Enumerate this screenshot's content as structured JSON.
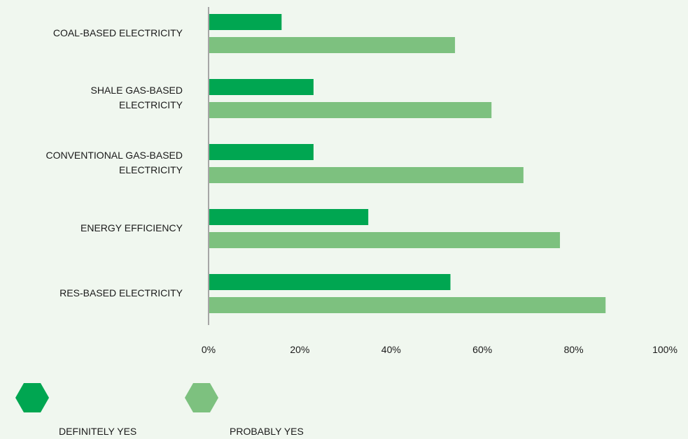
{
  "chart_data": {
    "type": "bar",
    "orientation": "horizontal",
    "categories": [
      "COAL-BASED ELECTRICITY",
      "SHALE GAS-BASED\nELECTRICITY",
      "CONVENTIONAL GAS-BASED\nELECTRICITY",
      "ENERGY EFFICIENCY",
      "RES-BASED ELECTRICITY"
    ],
    "series": [
      {
        "name": "DEFINITELY YES",
        "color": "#00a651",
        "values": [
          16,
          23,
          23,
          35,
          53
        ]
      },
      {
        "name": "PROBABLY YES",
        "color": "#7dc17f",
        "values": [
          54,
          62,
          69,
          77,
          87
        ]
      }
    ],
    "xlim": [
      0,
      100
    ],
    "xticks": [
      "0%",
      "20%",
      "40%",
      "60%",
      "80%",
      "100%"
    ],
    "title": "",
    "xlabel": "",
    "ylabel": "",
    "grid": false,
    "legend_position": "bottom-left"
  },
  "colors": {
    "background": "#f0f7ef",
    "axis": "#a6a6a6"
  }
}
